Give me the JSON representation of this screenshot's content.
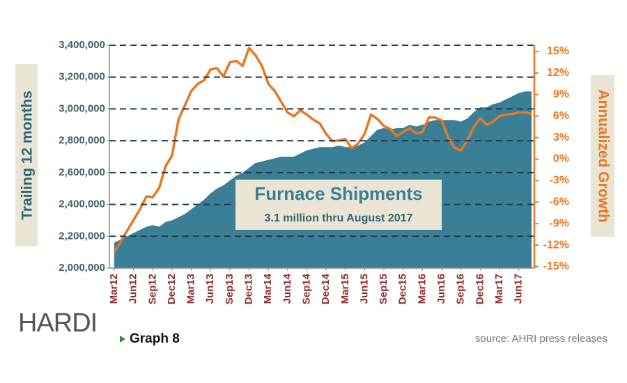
{
  "chart_data": {
    "type": "area-line",
    "title": "Furnace Shipments",
    "subtitle": "3.1 million thru August 2017",
    "ylabel": "Trailing 12 months",
    "y2label": "Annualized Growth",
    "logo": "HARDI",
    "caption": "Graph 8",
    "source": "source: AHRI press releases",
    "categories": [
      "Mar12",
      null,
      null,
      "Jun12",
      null,
      null,
      "Sep12",
      null,
      null,
      "Dec12",
      null,
      null,
      "Mar13",
      null,
      null,
      "Jun13",
      null,
      null,
      "Sep13",
      null,
      null,
      "Dec13",
      null,
      null,
      "Mar14",
      null,
      null,
      "Jun14",
      null,
      null,
      "Sep14",
      null,
      null,
      "Dec14",
      null,
      null,
      "Mar15",
      null,
      null,
      "Jun15",
      null,
      null,
      "Sep15",
      null,
      null,
      "Dec15",
      null,
      null,
      "Mar16",
      null,
      null,
      "Jun16",
      null,
      null,
      "Sep16",
      null,
      null,
      "Dec16",
      null,
      null,
      "Mar17",
      null,
      null,
      "Jun17",
      null,
      null
    ],
    "series": [
      {
        "name": "Trailing 12 months",
        "color": "#3a7f95",
        "axis": "y",
        "values": [
          2160000,
          2180000,
          2200000,
          2220000,
          2240000,
          2260000,
          2270000,
          2260000,
          2290000,
          2300000,
          2320000,
          2340000,
          2370000,
          2400000,
          2430000,
          2470000,
          2500000,
          2520000,
          2550000,
          2580000,
          2600000,
          2630000,
          2660000,
          2670000,
          2680000,
          2690000,
          2700000,
          2700000,
          2700000,
          2720000,
          2740000,
          2750000,
          2760000,
          2760000,
          2760000,
          2770000,
          2760000,
          2760000,
          2770000,
          2790000,
          2830000,
          2870000,
          2880000,
          2870000,
          2880000,
          2880000,
          2900000,
          2890000,
          2900000,
          2920000,
          2930000,
          2930000,
          2930000,
          2930000,
          2920000,
          2940000,
          2980000,
          3010000,
          3010000,
          3030000,
          3040000,
          3060000,
          3080000,
          3100000,
          3110000,
          3110000
        ]
      },
      {
        "name": "Annualized Growth",
        "color": "#e87722",
        "axis": "y2",
        "values": [
          -13,
          -11.5,
          -10,
          -8.5,
          -7,
          -5.2,
          -5.3,
          -4,
          -1,
          0.5,
          5.5,
          7.5,
          9.5,
          10.5,
          11,
          12.5,
          12.7,
          11.5,
          13.5,
          13.7,
          13,
          15.5,
          14.5,
          13,
          10.5,
          9.5,
          8,
          6.5,
          6,
          6.8,
          6.2,
          5.5,
          5,
          3.5,
          2.5,
          2.6,
          2.8,
          1.5,
          2.2,
          3.5,
          6.2,
          5.6,
          4.6,
          4.2,
          3.2,
          3.8,
          4.3,
          3.6,
          3.8,
          5.8,
          5.8,
          5.4,
          3,
          1.6,
          1.2,
          2.6,
          4.5,
          5.7,
          4.8,
          5.2,
          6,
          6.2,
          6.3,
          6.5,
          6.5,
          6.3
        ]
      }
    ],
    "ylim": [
      2000000,
      3400000
    ],
    "yticks": [
      {
        "value": 2000000,
        "label": "2,000,000"
      },
      {
        "value": 2200000,
        "label": "2,200,000"
      },
      {
        "value": 2400000,
        "label": "2,400,000"
      },
      {
        "value": 2600000,
        "label": "2,600,000"
      },
      {
        "value": 2800000,
        "label": "2,800,000"
      },
      {
        "value": 3000000,
        "label": "3,000,000"
      },
      {
        "value": 3200000,
        "label": "3,200,000"
      },
      {
        "value": 3400000,
        "label": "3,400,000"
      }
    ],
    "y2lim": [
      -15,
      15
    ],
    "y2ticks": [
      {
        "value": -15,
        "label": "-15%"
      },
      {
        "value": -12,
        "label": "-12%"
      },
      {
        "value": -9,
        "label": "-9%"
      },
      {
        "value": -6,
        "label": "-6%"
      },
      {
        "value": -3,
        "label": "-3%"
      },
      {
        "value": 0,
        "label": "0%"
      },
      {
        "value": 3,
        "label": "3%"
      },
      {
        "value": 6,
        "label": "6%"
      },
      {
        "value": 9,
        "label": "9%"
      },
      {
        "value": 12,
        "label": "12%"
      },
      {
        "value": 15,
        "label": "15%"
      }
    ],
    "grid": true
  }
}
